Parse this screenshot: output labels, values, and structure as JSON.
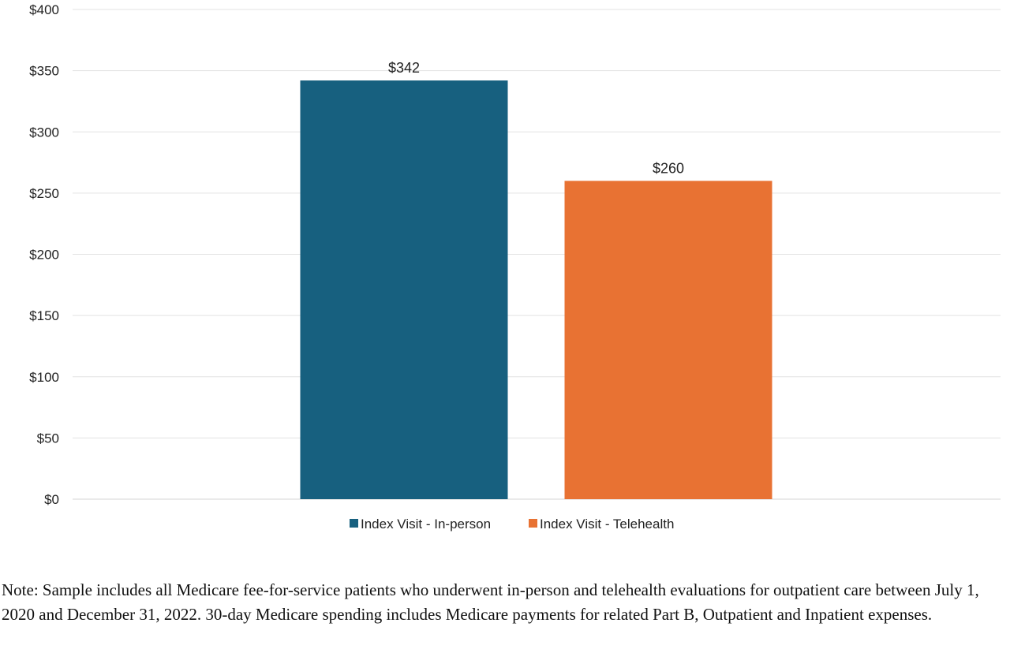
{
  "chart_data": {
    "type": "bar",
    "categories": [
      "Index Visit - In-person",
      "Index Visit - Telehealth"
    ],
    "values": [
      342,
      260
    ],
    "data_labels": [
      "$342",
      "$260"
    ],
    "colors": [
      "#17607f",
      "#e87233"
    ],
    "ylim": [
      0,
      400
    ],
    "y_ticks": [
      0,
      50,
      100,
      150,
      200,
      250,
      300,
      350,
      400
    ],
    "y_tick_labels": [
      "$0",
      "$50",
      "$100",
      "$150",
      "$200",
      "$250",
      "$300",
      "$350",
      "$400"
    ],
    "grid": true,
    "legend_position": "bottom",
    "title": "",
    "xlabel": "",
    "ylabel": ""
  },
  "note": "Note: Sample includes all Medicare fee-for-service patients who underwent in-person and telehealth evaluations for outpatient care between July 1, 2020 and December 31, 2022. 30-day Medicare spending includes Medicare payments for related Part B, Outpatient and Inpatient expenses."
}
